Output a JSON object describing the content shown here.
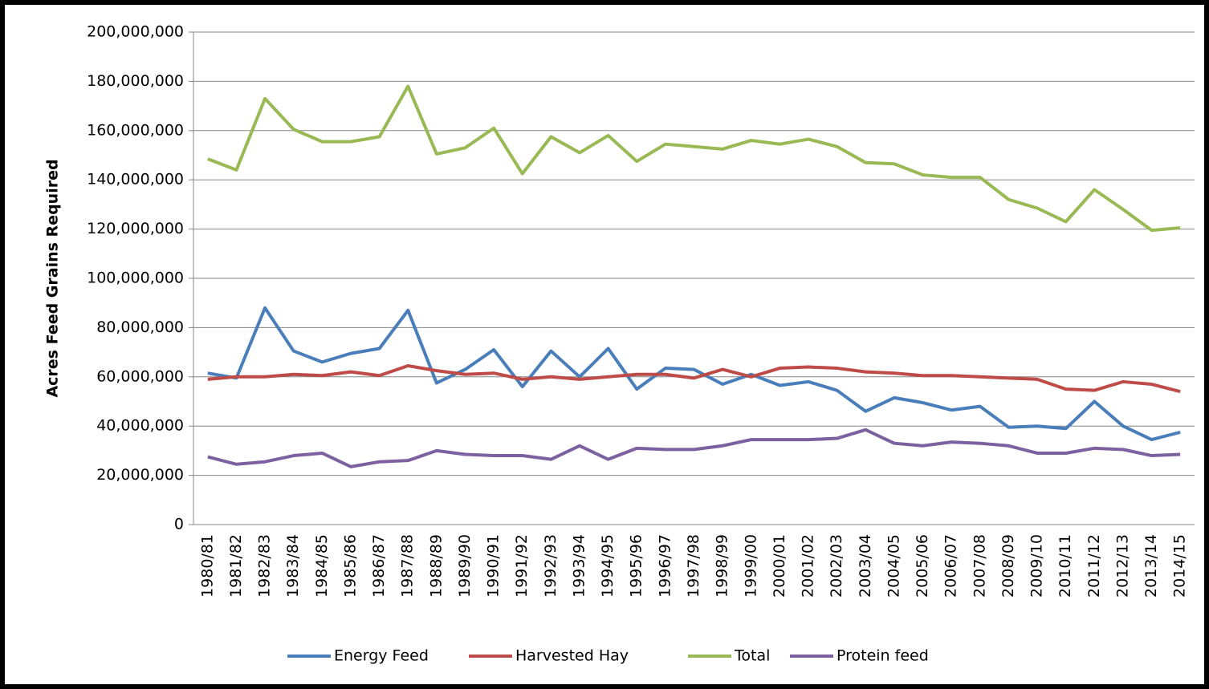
{
  "chart_data": {
    "type": "line",
    "y_label": "Acres Feed Grains Required",
    "categories": [
      "1980/81",
      "1981/82",
      "1982/83",
      "1983/84",
      "1984/85",
      "1985/86",
      "1986/87",
      "1987/88",
      "1988/89",
      "1989/90",
      "1990/91",
      "1991/92",
      "1992/93",
      "1993/94",
      "1994/95",
      "1995/96",
      "1996/97",
      "1997/98",
      "1998/99",
      "1999/00",
      "2000/01",
      "2001/02",
      "2002/03",
      "2003/04",
      "2004/05",
      "2005/06",
      "2006/07",
      "2007/08",
      "2008/09",
      "2009/10",
      "2010/11",
      "2011/12",
      "2012/13",
      "2013/14",
      "2014/15"
    ],
    "series": [
      {
        "name": "Energy Feed",
        "color": "#4a7ebb",
        "values": [
          61500000,
          59500000,
          88000000,
          70500000,
          66000000,
          69500000,
          71500000,
          87000000,
          57500000,
          63000000,
          71000000,
          56000000,
          70500000,
          60000000,
          71500000,
          55000000,
          63500000,
          63000000,
          57000000,
          61000000,
          56500000,
          58000000,
          54500000,
          46000000,
          51500000,
          49500000,
          46500000,
          48000000,
          39500000,
          40000000,
          39000000,
          50000000,
          40000000,
          34500000,
          37500000
        ]
      },
      {
        "name": "Harvested Hay",
        "color": "#be4b48",
        "values": [
          59000000,
          60000000,
          60000000,
          61000000,
          60500000,
          62000000,
          60500000,
          64500000,
          62500000,
          61000000,
          61500000,
          59000000,
          60000000,
          59000000,
          60000000,
          61000000,
          61000000,
          59500000,
          63000000,
          60000000,
          63500000,
          64000000,
          63500000,
          62000000,
          61500000,
          60500000,
          60500000,
          60000000,
          59500000,
          59000000,
          55000000,
          54500000,
          58000000,
          57000000,
          54000000
        ]
      },
      {
        "name": "Total",
        "color": "#98b954",
        "values": [
          148500000,
          144000000,
          173000000,
          160500000,
          155500000,
          155500000,
          157500000,
          178000000,
          150500000,
          153000000,
          161000000,
          142500000,
          157500000,
          151000000,
          158000000,
          147500000,
          154500000,
          153500000,
          152500000,
          156000000,
          154500000,
          156500000,
          153500000,
          147000000,
          146500000,
          142000000,
          141000000,
          141000000,
          132000000,
          128500000,
          123000000,
          136000000,
          128000000,
          119500000,
          120500000
        ]
      },
      {
        "name": "Protein feed",
        "color": "#7d60a0",
        "values": [
          27500000,
          24500000,
          25500000,
          28000000,
          29000000,
          23500000,
          25500000,
          26000000,
          30000000,
          28500000,
          28000000,
          28000000,
          26500000,
          32000000,
          26500000,
          31000000,
          30500000,
          30500000,
          32000000,
          34500000,
          34500000,
          34500000,
          35000000,
          38500000,
          33000000,
          32000000,
          33500000,
          33000000,
          32000000,
          29000000,
          29000000,
          31000000,
          30500000,
          28000000,
          28500000
        ]
      }
    ],
    "ylim": [
      0,
      200000000
    ],
    "yticks": [
      0,
      {
        "value": 20000000,
        "label": "20,000,000"
      },
      {
        "value": 40000000,
        "label": "40,000,000"
      },
      {
        "value": 60000000,
        "label": "60,000,000"
      },
      {
        "value": 80000000,
        "label": "80,000,000"
      },
      {
        "value": 100000000,
        "label": "100,000,000"
      },
      {
        "value": 120000000,
        "label": "120,000,000"
      },
      {
        "value": 140000000,
        "label": "140,000,000"
      },
      {
        "value": 160000000,
        "label": "160,000,000"
      },
      {
        "value": 180000000,
        "label": "180,000,000"
      },
      {
        "value": 200000000,
        "label": "200,000,000"
      }
    ],
    "grid": true,
    "legend": "bottom"
  }
}
